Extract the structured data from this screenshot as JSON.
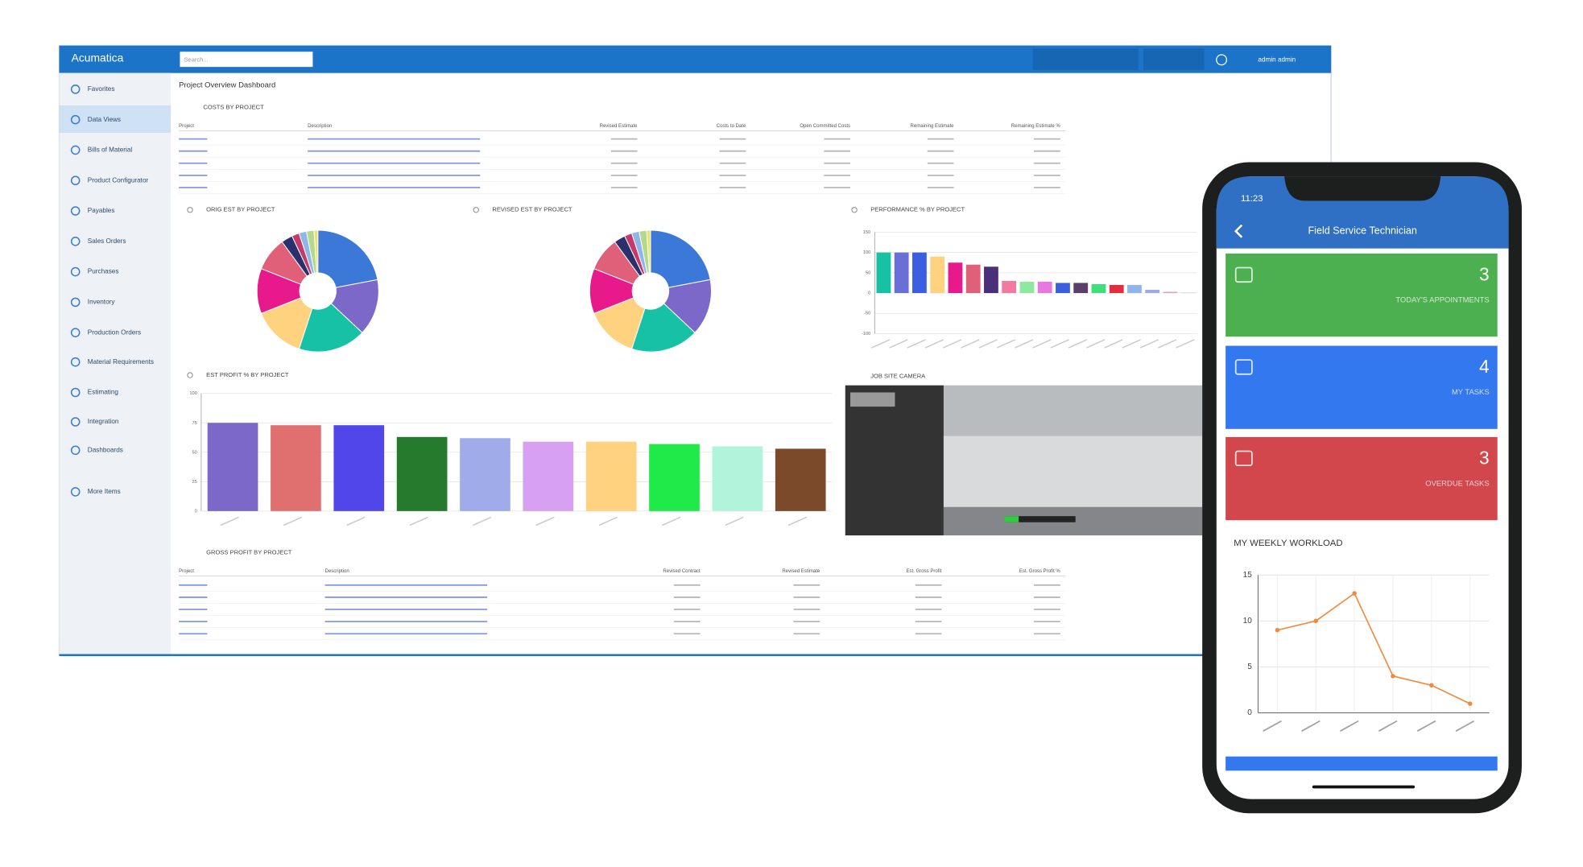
{
  "app": {
    "brand": "Acumatica",
    "search": "Search...",
    "user": "admin admin"
  },
  "sidebar": [
    "Favorites",
    "Data Views",
    "Bills of Material",
    "Product Configurator",
    "Payables",
    "Sales Orders",
    "Purchases",
    "Inventory",
    "Production Orders",
    "Material Requirements",
    "Estimating",
    "Integration",
    "Dashboards",
    "More Items"
  ],
  "page_title": "Project Overview Dashboard",
  "costs_table": {
    "title": "COSTS BY PROJECT",
    "columns": [
      "Project",
      "Description",
      "Revised Estimate",
      "Costs to Date",
      "Open Committed Costs",
      "Remaining Estimate",
      "Remaining Estimate %"
    ]
  },
  "gross_profit_table": {
    "title": "GROSS PROFIT BY PROJECT",
    "columns": [
      "Project",
      "Description",
      "Revised Contract",
      "Revised Estimate",
      "Est. Gross Profit",
      "Est. Gross Profit %"
    ]
  },
  "camera": {
    "title": "JOB SITE CAMERA"
  },
  "charts": [
    {
      "type": "pie",
      "title": "ORIG EST BY PROJECT",
      "values": [
        22,
        15,
        18,
        14,
        12,
        9,
        3,
        2,
        2,
        2,
        1
      ],
      "colors": [
        "#3b78d8",
        "#7b68c8",
        "#17c1a6",
        "#ffd27f",
        "#e8198b",
        "#e0607a",
        "#2b2f6b",
        "#c43b6b",
        "#8fb6e8",
        "#b5d98c",
        "#e9e36a"
      ]
    },
    {
      "type": "pie",
      "title": "REVISED EST BY PROJECT",
      "values": [
        22,
        15,
        18,
        14,
        12,
        9,
        3,
        2,
        2,
        2,
        1
      ],
      "colors": [
        "#3b78d8",
        "#7b68c8",
        "#17c1a6",
        "#ffd27f",
        "#e8198b",
        "#e0607a",
        "#2b2f6b",
        "#c43b6b",
        "#8fb6e8",
        "#b5d98c",
        "#e9e36a"
      ]
    },
    {
      "type": "bar",
      "title": "PERFORMANCE % BY PROJECT",
      "values": [
        100,
        100,
        100,
        90,
        75,
        70,
        65,
        30,
        28,
        28,
        25,
        25,
        22,
        20,
        20,
        8,
        3,
        1
      ],
      "colors": [
        "#17c1a6",
        "#6a6fd8",
        "#3b5fe0",
        "#ffd27f",
        "#e8198b",
        "#e0607a",
        "#4a2f7a",
        "#f07aa0",
        "#8ee8a0",
        "#e678e0",
        "#3b5fe0",
        "#5a3f6a",
        "#3de07a",
        "#e03040",
        "#8fb6e8",
        "#a0a8e8",
        "#e0a0c0",
        "#c0c0c0"
      ],
      "ylim": [
        -100,
        150
      ],
      "yticks": [
        -100,
        -50,
        0,
        50,
        100,
        150
      ],
      "grid": true
    },
    {
      "type": "bar",
      "title": "EST PROFIT % BY PROJECT",
      "values": [
        75,
        73,
        73,
        63,
        62,
        59,
        59,
        57,
        55,
        53
      ],
      "colors": [
        "#7b68c8",
        "#e07070",
        "#5046ea",
        "#257a2e",
        "#a0acea",
        "#d8a0f0",
        "#ffd27f",
        "#20ea4a",
        "#b0f4dc",
        "#7a4a2a"
      ],
      "ylim": [
        0,
        100
      ],
      "yticks": [
        0,
        25,
        50,
        75,
        100
      ],
      "grid": true
    }
  ],
  "phone": {
    "time": "11:23",
    "title": "Field Service Technician",
    "tiles": [
      {
        "value": 3,
        "label": "TODAY'S APPOINTMENTS",
        "color": "#4caf50"
      },
      {
        "value": 4,
        "label": "MY TASKS",
        "color": "#3478f0"
      },
      {
        "value": 3,
        "label": "OVERDUE TASKS",
        "color": "#d2474b"
      }
    ],
    "chart": {
      "type": "line",
      "title": "MY WEEKLY WORKLOAD",
      "values": [
        9,
        10,
        13,
        4,
        3,
        1
      ],
      "color": "#f08a3c",
      "ylim": [
        0,
        15
      ],
      "yticks": [
        0,
        5,
        10,
        15
      ],
      "grid": true
    }
  }
}
